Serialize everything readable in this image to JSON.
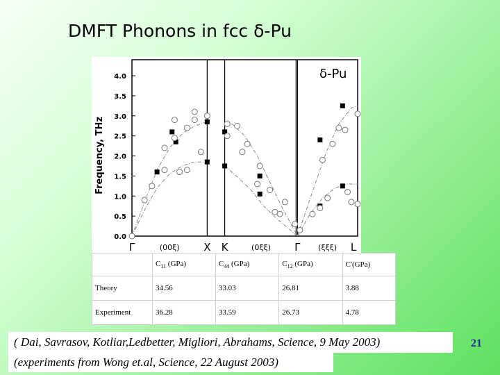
{
  "slide": {
    "title": "DMFT  Phonons in fcc δ-Pu",
    "number": "21",
    "citation": "( Dai, Savrasov, Kotliar,Ledbetter, Migliori, Abrahams, Science, 9 May 2003)",
    "citation2": "(experiments from Wong et.al, Science, 22 August 2003)"
  },
  "chart_data": {
    "type": "scatter",
    "title": "δ-Pu",
    "ylabel": "Frequency, THz",
    "ylim": [
      0,
      4.4
    ],
    "yticks": [
      "0.0",
      "0.5",
      "1.0",
      "1.5",
      "2.0",
      "2.5",
      "3.0",
      "3.5",
      "4.0"
    ],
    "grid": false,
    "panels": [
      {
        "name": "(00ξ)",
        "from": "Γ",
        "to": "X"
      },
      {
        "name": "(0ξξ)",
        "from": "K",
        "to": "Γ"
      },
      {
        "name": "(ξξξ)",
        "from": "Γ",
        "to": "L"
      }
    ],
    "point_labels": [
      "Γ",
      "X",
      "K",
      "Γ",
      "L"
    ],
    "series": [
      {
        "name": "DMFT",
        "marker": "line",
        "branches": [
          {
            "points": [
              [
                0,
                0
              ],
              [
                0.1,
                0.85
              ],
              [
                0.2,
                1.65
              ],
              [
                0.3,
                2.2
              ],
              [
                0.4,
                2.55
              ],
              [
                0.5,
                2.75
              ],
              [
                0.6,
                2.85
              ]
            ]
          },
          {
            "points": [
              [
                0,
                0
              ],
              [
                0.1,
                0.65
              ],
              [
                0.2,
                1.2
              ],
              [
                0.3,
                1.55
              ],
              [
                0.4,
                1.75
              ],
              [
                0.5,
                1.85
              ],
              [
                0.6,
                1.85
              ]
            ]
          },
          {
            "points": [
              [
                0.74,
                2.75
              ],
              [
                0.8,
                2.8
              ],
              [
                0.9,
                2.5
              ],
              [
                1.0,
                2.0
              ],
              [
                1.1,
                1.35
              ],
              [
                1.2,
                0.7
              ],
              [
                1.32,
                0
              ]
            ]
          },
          {
            "points": [
              [
                0.74,
                1.75
              ],
              [
                0.85,
                1.45
              ],
              [
                0.95,
                1.15
              ],
              [
                1.05,
                0.75
              ],
              [
                1.15,
                0.45
              ],
              [
                1.32,
                0
              ]
            ]
          },
          {
            "points": [
              [
                1.32,
                0
              ],
              [
                1.45,
                1.2
              ],
              [
                1.55,
                2.1
              ],
              [
                1.65,
                2.8
              ],
              [
                1.75,
                3.2
              ],
              [
                1.8,
                3.25
              ]
            ]
          },
          {
            "points": [
              [
                1.32,
                0
              ],
              [
                1.42,
                0.55
              ],
              [
                1.52,
                0.95
              ],
              [
                1.62,
                1.2
              ],
              [
                1.72,
                1.3
              ],
              [
                1.8,
                1.3
              ]
            ]
          }
        ]
      },
      {
        "name": "Theory (filled squares)",
        "marker": "square",
        "points": [
          [
            0.1,
            0.9
          ],
          [
            0.2,
            1.6
          ],
          [
            0.32,
            2.6
          ],
          [
            0.35,
            2.35
          ],
          [
            0.6,
            2.85
          ],
          [
            0.6,
            1.85
          ],
          [
            0.74,
            2.6
          ],
          [
            0.74,
            1.75
          ],
          [
            1.02,
            1.5
          ],
          [
            1.02,
            1.05
          ],
          [
            1.5,
            2.4
          ],
          [
            1.5,
            0.75
          ],
          [
            1.68,
            3.25
          ],
          [
            1.68,
            1.25
          ]
        ]
      },
      {
        "name": "Experiment (open circles)",
        "marker": "circle",
        "points": [
          [
            0,
            0
          ],
          [
            0.1,
            0.9
          ],
          [
            0.16,
            1.25
          ],
          [
            0.26,
            1.65
          ],
          [
            0.26,
            2.2
          ],
          [
            0.34,
            2.9
          ],
          [
            0.34,
            2.45
          ],
          [
            0.38,
            1.6
          ],
          [
            0.44,
            2.7
          ],
          [
            0.44,
            1.65
          ],
          [
            0.5,
            3.1
          ],
          [
            0.5,
            2.9
          ],
          [
            0.55,
            2.1
          ],
          [
            0.6,
            3.0
          ],
          [
            0.76,
            2.8
          ],
          [
            0.76,
            2.5
          ],
          [
            0.84,
            2.75
          ],
          [
            0.88,
            2.1
          ],
          [
            0.92,
            2.3
          ],
          [
            1.0,
            1.3
          ],
          [
            1.02,
            1.75
          ],
          [
            1.1,
            1.15
          ],
          [
            1.14,
            0.6
          ],
          [
            1.18,
            0.55
          ],
          [
            1.22,
            0.85
          ],
          [
            1.3,
            0.3
          ],
          [
            1.34,
            0.15
          ],
          [
            1.44,
            0.55
          ],
          [
            1.5,
            0.7
          ],
          [
            1.52,
            1.9
          ],
          [
            1.56,
            0.95
          ],
          [
            1.6,
            2.3
          ],
          [
            1.65,
            2.7
          ],
          [
            1.7,
            2.65
          ],
          [
            1.72,
            1.1
          ],
          [
            1.75,
            0.85
          ],
          [
            1.8,
            3.05
          ],
          [
            1.8,
            0.8
          ]
        ]
      }
    ],
    "table": {
      "headers": [
        "",
        "C11 (GPa)",
        "C44 (GPa)",
        "C12 (GPa)",
        "C'(GPa)"
      ],
      "rows": [
        {
          "label": "Theory",
          "values": [
            "34.56",
            "33.03",
            "26.81",
            "3.88"
          ]
        },
        {
          "label": "Experiment",
          "values": [
            "36.28",
            "33.59",
            "26.73",
            "4.78"
          ]
        }
      ]
    }
  }
}
